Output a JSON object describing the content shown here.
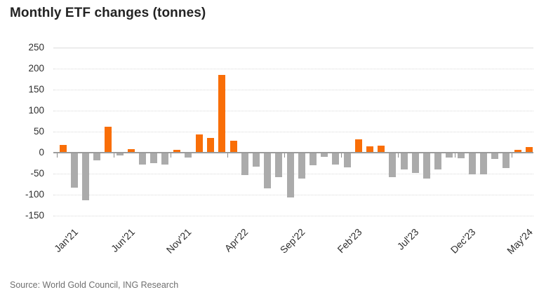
{
  "title": "Monthly ETF changes (tonnes)",
  "source": "Source: World Gold Council, ING Research",
  "colors": {
    "positive_bar": "#f96e07",
    "negative_bar": "#ababab",
    "axis_line": "#9b9b9b",
    "gridline": "#d9d9d9",
    "title_text": "#232323",
    "tick_text": "#2e2e2e",
    "source_text": "#6f6f6f"
  },
  "chart_data": {
    "type": "bar",
    "title": "Monthly ETF changes (tonnes)",
    "xlabel": "",
    "ylabel": "",
    "categories": [
      "Jan'21",
      "Feb'21",
      "Mar'21",
      "Apr'21",
      "May'21",
      "Jun'21",
      "Jul'21",
      "Aug'21",
      "Sep'21",
      "Oct'21",
      "Nov'21",
      "Dec'21",
      "Jan'22",
      "Feb'22",
      "Mar'22",
      "Apr'22",
      "May'22",
      "Jun'22",
      "Jul'22",
      "Aug'22",
      "Sep'22",
      "Oct'22",
      "Nov'22",
      "Dec'22",
      "Jan'23",
      "Feb'23",
      "Mar'23",
      "Apr'23",
      "May'23",
      "Jun'23",
      "Jul'23",
      "Aug'23",
      "Sep'23",
      "Oct'23",
      "Nov'23",
      "Dec'23",
      "Jan'24",
      "Feb'24",
      "Mar'24",
      "Apr'24",
      "May'24",
      "Jun'24"
    ],
    "values": [
      18,
      -83,
      -113,
      -18,
      61,
      -7,
      9,
      -28,
      -25,
      -28,
      6,
      -11,
      43,
      35,
      185,
      28,
      -53,
      -33,
      -85,
      -59,
      -107,
      -62,
      -30,
      -10,
      -29,
      -35,
      31,
      15,
      17,
      -58,
      -40,
      -48,
      -61,
      -40,
      -11,
      -14,
      -52,
      -51,
      -15,
      -37,
      7,
      14
    ],
    "ylim": [
      -150,
      250
    ],
    "yticks": [
      250,
      200,
      150,
      100,
      50,
      0,
      -50,
      -100,
      -150
    ],
    "xtick_labels": [
      "Jan'21",
      "Jun'21",
      "Nov'21",
      "Apr'22",
      "Sep'22",
      "Feb'23",
      "Jul'23",
      "Dec'23",
      "May'24"
    ],
    "grid": "horizontal, dotted, zero axis solid gray",
    "legend": "none",
    "bar_color_rule": "positive values orange, negative values gray"
  }
}
